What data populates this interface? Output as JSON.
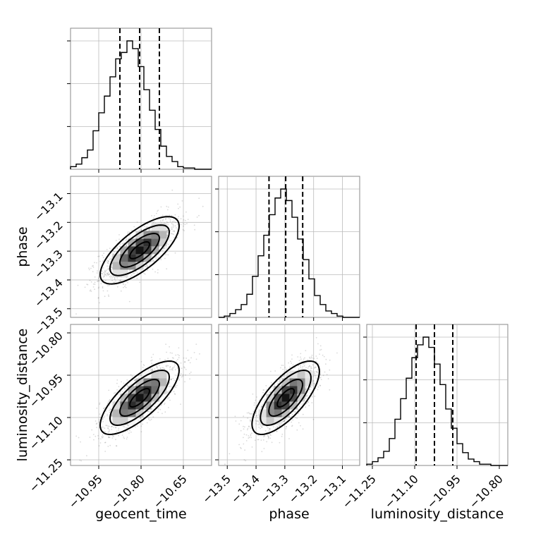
{
  "figure": {
    "labels": [
      "geocent_time",
      "phase",
      "luminosity_distance"
    ]
  },
  "chart_data": {
    "type": "corner",
    "parameters": [
      {
        "name": "geocent_time",
        "range": [
          -11.05,
          -10.55
        ],
        "ticks": [
          -10.95,
          -10.8,
          -10.65
        ],
        "tick_labels": [
          "−10.95",
          "−10.80",
          "−10.65"
        ],
        "quantiles": [
          -10.875,
          -10.805,
          -10.735
        ]
      },
      {
        "name": "phase",
        "range": [
          -13.53,
          -13.04
        ],
        "ticks": [
          -13.5,
          -13.4,
          -13.3,
          -13.2,
          -13.1
        ],
        "tick_labels": [
          "−13.5",
          "−13.4",
          "−13.3",
          "−13.2",
          "−13.1"
        ],
        "quantiles": [
          -13.355,
          -13.297,
          -13.238
        ]
      },
      {
        "name": "luminosity_distance",
        "range": [
          -11.27,
          -10.77
        ],
        "ticks": [
          -11.25,
          -11.1,
          -10.95,
          -10.8
        ],
        "tick_labels": [
          "−11.25",
          "−11.10",
          "−10.95",
          "−10.80"
        ],
        "quantiles": [
          -11.095,
          -11.03,
          -10.965
        ]
      }
    ],
    "histograms": [
      {
        "parameter": "geocent_time",
        "bins": 25,
        "counts": [
          2,
          4,
          9,
          15,
          30,
          44,
          57,
          72,
          86,
          91,
          100,
          94,
          80,
          62,
          46,
          31,
          18,
          10,
          6,
          2,
          1,
          1,
          0,
          0,
          0
        ]
      },
      {
        "parameter": "phase",
        "bins": 25,
        "counts": [
          0,
          1,
          3,
          6,
          10,
          18,
          32,
          48,
          64,
          80,
          93,
          100,
          91,
          78,
          61,
          45,
          30,
          17,
          10,
          5,
          3,
          1,
          0,
          0,
          0
        ]
      },
      {
        "parameter": "luminosity_distance",
        "bins": 25,
        "counts": [
          1,
          3,
          6,
          11,
          21,
          36,
          52,
          68,
          84,
          94,
          100,
          92,
          79,
          63,
          44,
          29,
          17,
          10,
          5,
          3,
          1,
          1,
          0,
          0,
          0
        ]
      }
    ],
    "correlations": [
      {
        "x": "geocent_time",
        "y": "phase",
        "rho": 0.72
      },
      {
        "x": "geocent_time",
        "y": "luminosity_distance",
        "rho": 0.75
      },
      {
        "x": "phase",
        "y": "luminosity_distance",
        "rho": 0.72
      }
    ],
    "grid": true,
    "quantile_lines": "dashed"
  }
}
